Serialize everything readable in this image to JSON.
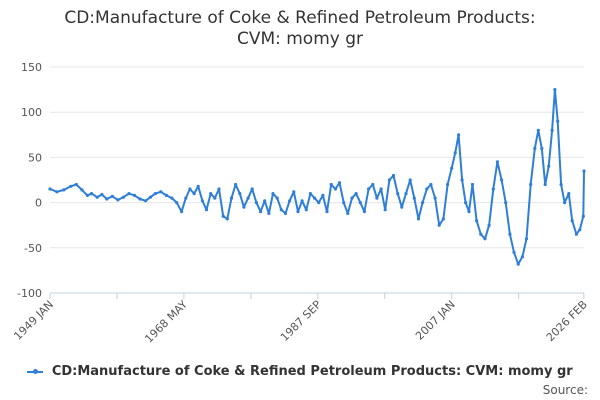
{
  "chart_data": {
    "type": "line",
    "title_lines": [
      "CD:Manufacture of Coke & Refined Petroleum Products:",
      "CVM: momy gr"
    ],
    "xlabel": "",
    "ylabel": "",
    "ylim": [
      -100,
      150
    ],
    "yticks": [
      "150",
      "100",
      "50",
      "0",
      "-50",
      "-100"
    ],
    "ytick_values": [
      150,
      100,
      50,
      0,
      -50,
      -100
    ],
    "xlim": [
      1949.0,
      2026.1
    ],
    "xticks": [
      {
        "label": "1949 JAN",
        "value": 1949.0
      },
      {
        "label": "1968 MAY",
        "value": 1968.33
      },
      {
        "label": "1987 SEP",
        "value": 1987.67
      },
      {
        "label": "2007 JAN",
        "value": 2007.0
      },
      {
        "label": "2026 FEB",
        "value": 2026.08
      }
    ],
    "minor_xticks": [
      1958.67,
      1978.0,
      1997.33,
      2016.67
    ],
    "grid": "horizontal",
    "legend_position": "bottom-center",
    "color": "#2f7ed8",
    "series": [
      {
        "name": "CD:Manufacture of Coke & Refined Petroleum Products: CVM: momy gr",
        "points": [
          [
            1949.0,
            15
          ],
          [
            1950.0,
            12
          ],
          [
            1951.0,
            14
          ],
          [
            1952.0,
            18
          ],
          [
            1952.8,
            20
          ],
          [
            1953.6,
            14
          ],
          [
            1954.4,
            8
          ],
          [
            1955.0,
            10
          ],
          [
            1955.8,
            6
          ],
          [
            1956.5,
            9
          ],
          [
            1957.2,
            4
          ],
          [
            1958.0,
            7
          ],
          [
            1958.8,
            3
          ],
          [
            1959.6,
            6
          ],
          [
            1960.4,
            10
          ],
          [
            1961.2,
            8
          ],
          [
            1962.0,
            4
          ],
          [
            1962.8,
            2
          ],
          [
            1963.5,
            6
          ],
          [
            1964.2,
            10
          ],
          [
            1965.0,
            12
          ],
          [
            1965.8,
            8
          ],
          [
            1966.6,
            5
          ],
          [
            1967.3,
            0
          ],
          [
            1968.0,
            -10
          ],
          [
            1968.6,
            5
          ],
          [
            1969.2,
            15
          ],
          [
            1969.8,
            10
          ],
          [
            1970.4,
            18
          ],
          [
            1971.0,
            2
          ],
          [
            1971.6,
            -8
          ],
          [
            1972.2,
            10
          ],
          [
            1972.8,
            5
          ],
          [
            1973.4,
            15
          ],
          [
            1974.0,
            -15
          ],
          [
            1974.6,
            -18
          ],
          [
            1975.2,
            5
          ],
          [
            1975.8,
            20
          ],
          [
            1976.4,
            10
          ],
          [
            1977.0,
            -5
          ],
          [
            1977.6,
            5
          ],
          [
            1978.2,
            15
          ],
          [
            1978.8,
            0
          ],
          [
            1979.4,
            -10
          ],
          [
            1980.0,
            2
          ],
          [
            1980.6,
            -12
          ],
          [
            1981.2,
            10
          ],
          [
            1981.8,
            5
          ],
          [
            1982.4,
            -8
          ],
          [
            1983.0,
            -12
          ],
          [
            1983.6,
            2
          ],
          [
            1984.2,
            12
          ],
          [
            1984.8,
            -10
          ],
          [
            1985.4,
            2
          ],
          [
            1986.0,
            -8
          ],
          [
            1986.6,
            10
          ],
          [
            1987.2,
            5
          ],
          [
            1987.8,
            0
          ],
          [
            1988.4,
            8
          ],
          [
            1989.0,
            -10
          ],
          [
            1989.6,
            20
          ],
          [
            1990.2,
            15
          ],
          [
            1990.8,
            22
          ],
          [
            1991.4,
            0
          ],
          [
            1992.0,
            -12
          ],
          [
            1992.6,
            5
          ],
          [
            1993.2,
            10
          ],
          [
            1993.8,
            0
          ],
          [
            1994.4,
            -10
          ],
          [
            1995.0,
            15
          ],
          [
            1995.6,
            20
          ],
          [
            1996.2,
            5
          ],
          [
            1996.8,
            15
          ],
          [
            1997.4,
            -8
          ],
          [
            1998.0,
            25
          ],
          [
            1998.6,
            30
          ],
          [
            1999.2,
            10
          ],
          [
            1999.8,
            -5
          ],
          [
            2000.4,
            10
          ],
          [
            2001.0,
            25
          ],
          [
            2001.6,
            5
          ],
          [
            2002.2,
            -18
          ],
          [
            2002.8,
            0
          ],
          [
            2003.4,
            15
          ],
          [
            2004.0,
            20
          ],
          [
            2004.6,
            5
          ],
          [
            2005.2,
            -25
          ],
          [
            2005.8,
            -18
          ],
          [
            2006.4,
            20
          ],
          [
            2007.0,
            38
          ],
          [
            2007.5,
            55
          ],
          [
            2008.0,
            75
          ],
          [
            2008.5,
            25
          ],
          [
            2009.0,
            0
          ],
          [
            2009.5,
            -10
          ],
          [
            2010.0,
            20
          ],
          [
            2010.6,
            -20
          ],
          [
            2011.2,
            -35
          ],
          [
            2011.8,
            -40
          ],
          [
            2012.4,
            -25
          ],
          [
            2013.0,
            15
          ],
          [
            2013.6,
            45
          ],
          [
            2014.2,
            25
          ],
          [
            2014.8,
            0
          ],
          [
            2015.4,
            -35
          ],
          [
            2016.0,
            -55
          ],
          [
            2016.6,
            -68
          ],
          [
            2017.2,
            -60
          ],
          [
            2017.8,
            -40
          ],
          [
            2018.4,
            20
          ],
          [
            2019.0,
            60
          ],
          [
            2019.5,
            80
          ],
          [
            2020.0,
            60
          ],
          [
            2020.5,
            20
          ],
          [
            2021.0,
            40
          ],
          [
            2021.5,
            80
          ],
          [
            2021.9,
            125
          ],
          [
            2022.3,
            90
          ],
          [
            2022.8,
            20
          ],
          [
            2023.3,
            0
          ],
          [
            2023.9,
            10
          ],
          [
            2024.4,
            -20
          ],
          [
            2025.0,
            -35
          ],
          [
            2025.5,
            -30
          ],
          [
            2026.0,
            -15
          ],
          [
            2026.6,
            35
          ],
          [
            2027.2,
            15
          ],
          [
            2027.8,
            -15
          ],
          [
            2028.4,
            5
          ],
          [
            2029.0,
            10
          ],
          [
            2029.6,
            -5
          ],
          [
            2030.2,
            2
          ],
          [
            2030.8,
            -10
          ]
        ]
      }
    ],
    "legend_label": "CD:Manufacture of Coke & Refined Petroleum Products: CVM: momy gr",
    "source_label": "Source:"
  }
}
